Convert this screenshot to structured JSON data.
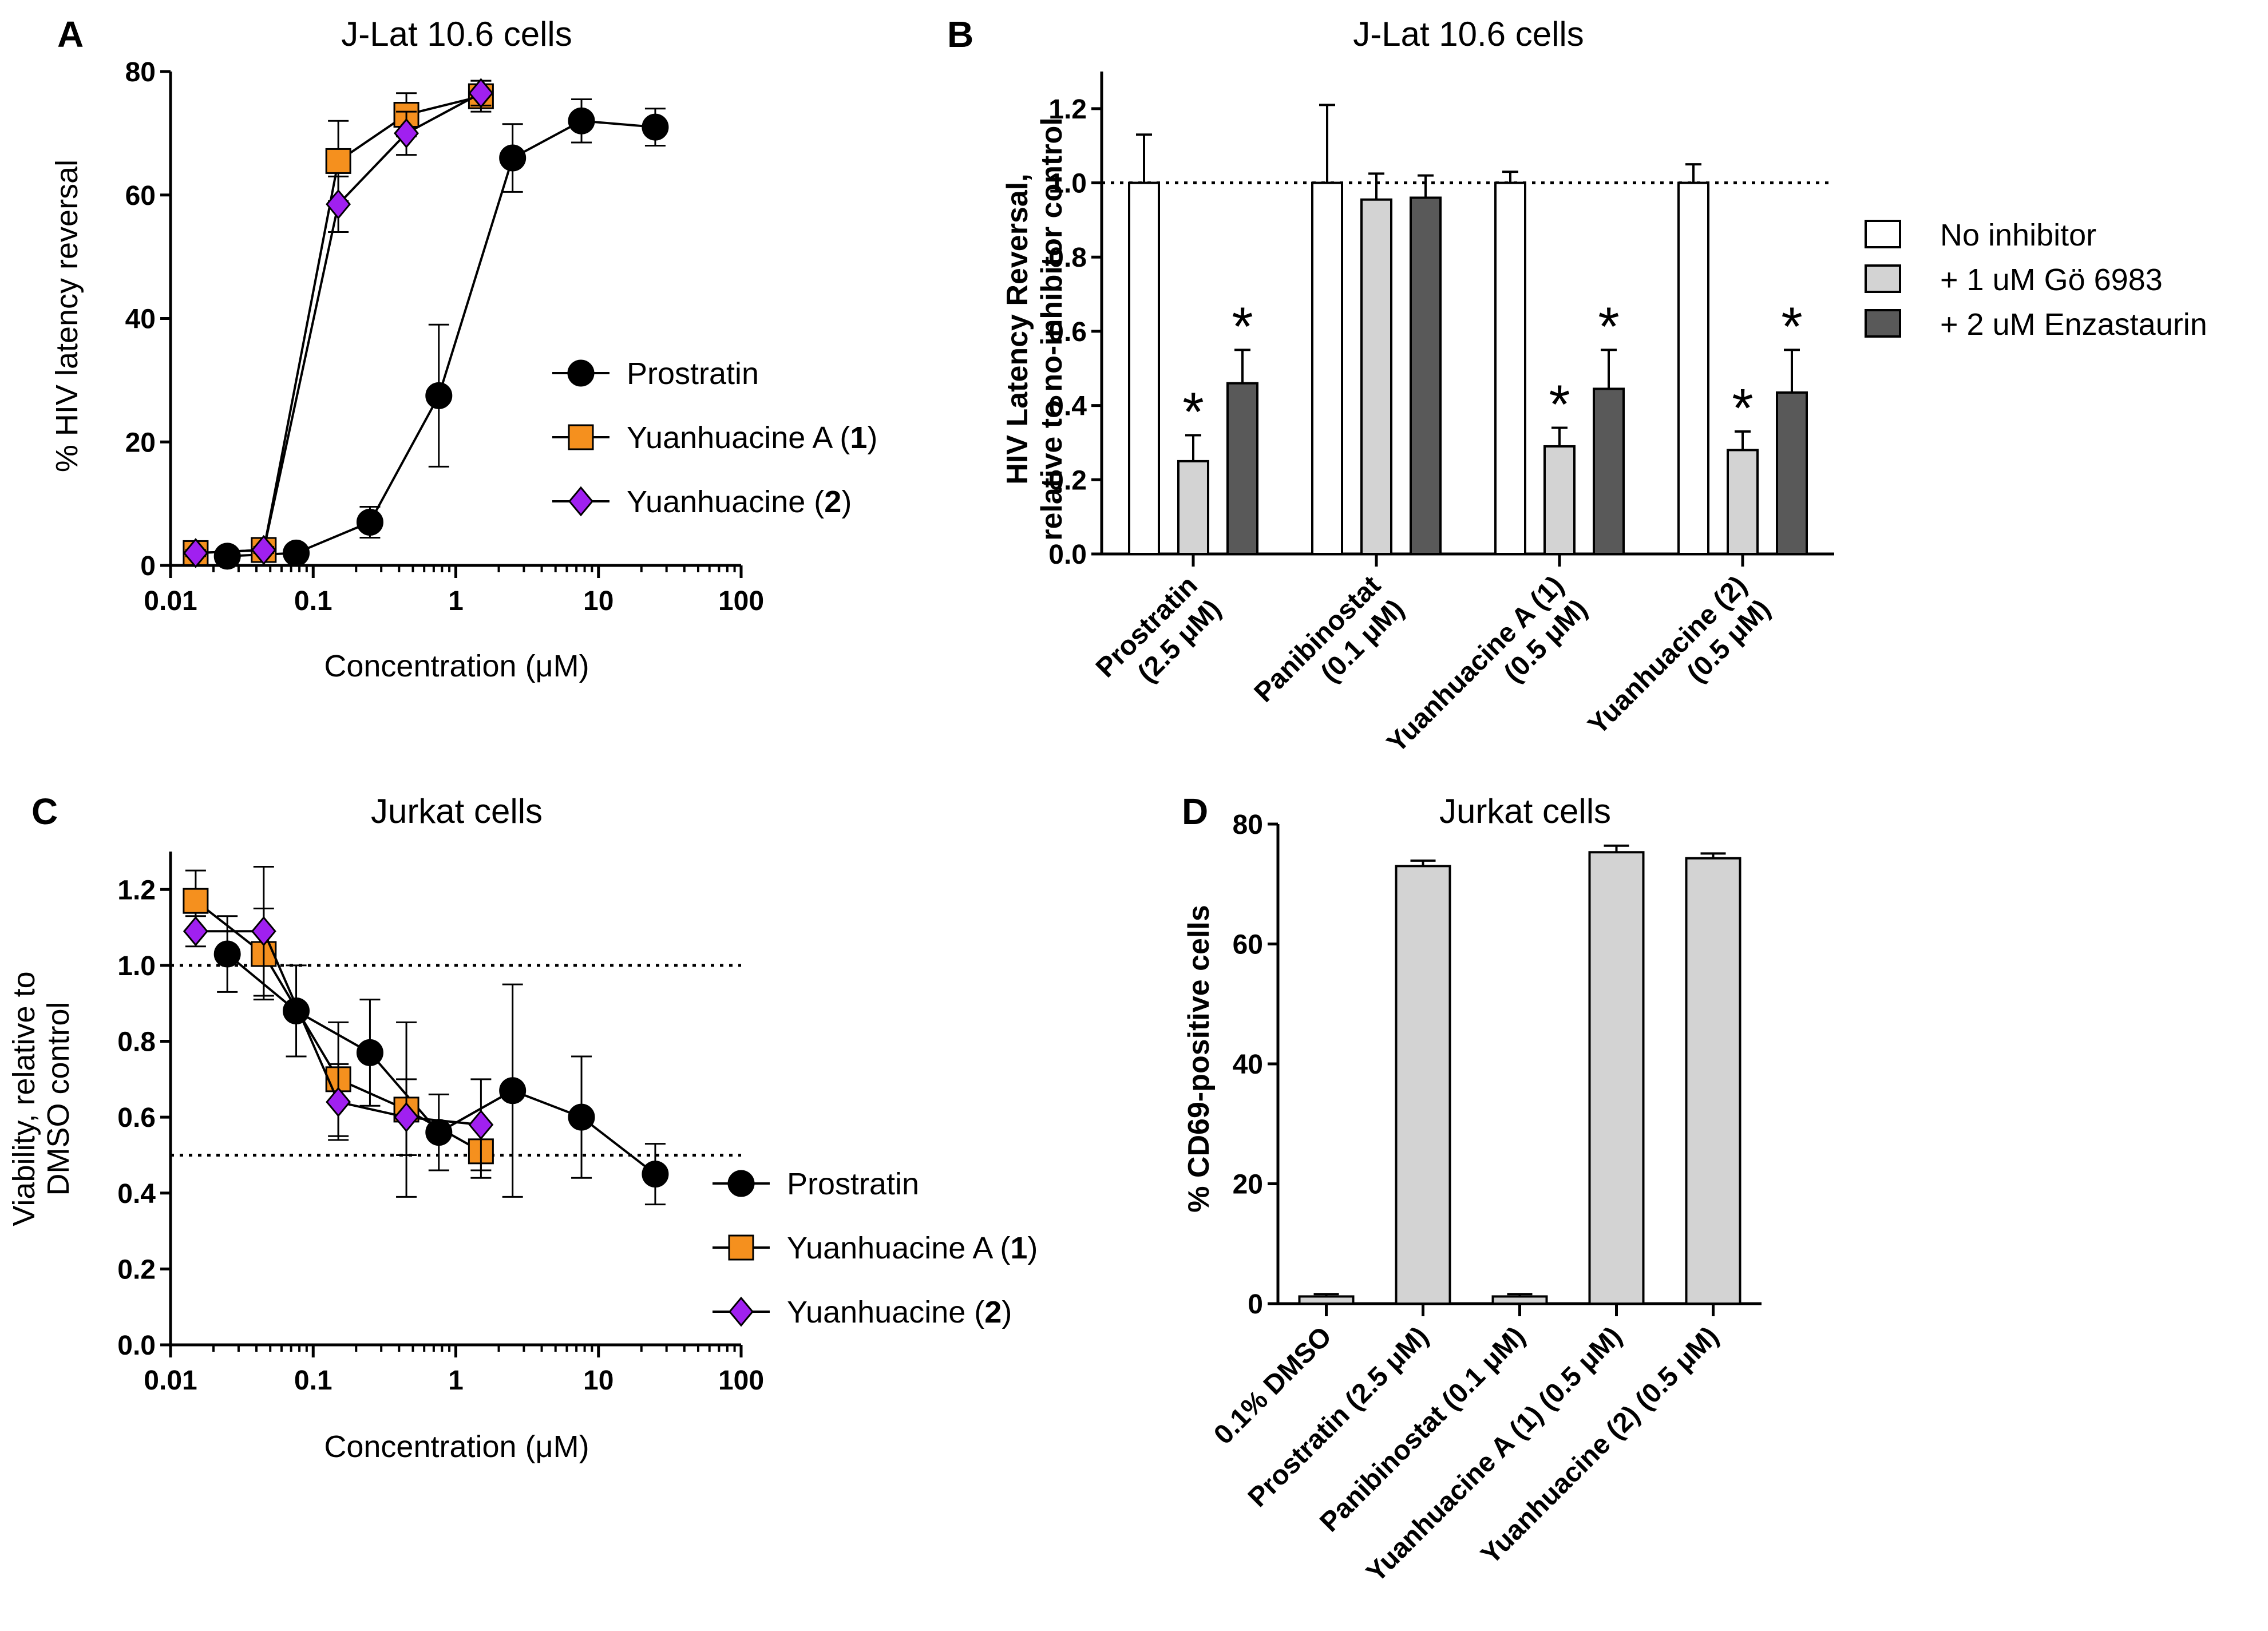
{
  "chart_data": [
    {
      "panel": "A",
      "type": "line",
      "title": "J-Lat 10.6 cells",
      "xlabel": "Concentration (μM)",
      "ylabel": "% HIV latency reversal",
      "xscale": "log",
      "xlim": [
        0.01,
        100
      ],
      "ylim": [
        0,
        80
      ],
      "yticks": [
        0,
        20,
        40,
        60,
        80
      ],
      "xticks": [
        0.01,
        0.1,
        1,
        10,
        100
      ],
      "xtick_labels": [
        "0.01",
        "0.1",
        "1",
        "10",
        "100"
      ],
      "legend_position": "right",
      "series": [
        {
          "name": "Prostratin",
          "label_main": "Prostratin",
          "label_num": "",
          "marker": "circle",
          "color": "#000000",
          "x": [
            0.025,
            0.076,
            0.25,
            0.76,
            2.5,
            7.6,
            25
          ],
          "y": [
            1.5,
            2,
            7,
            27.5,
            66,
            72,
            71
          ],
          "err": [
            0.5,
            0.5,
            2.5,
            11.5,
            5.5,
            3.5,
            3
          ]
        },
        {
          "name": "Yuanhuacine A (1)",
          "label_main": "Yuanhuacine A (",
          "label_num": "1",
          "marker": "square",
          "color": "#F5901E",
          "x": [
            0.015,
            0.045,
            0.15,
            0.45,
            1.5
          ],
          "y": [
            2,
            2.5,
            65.5,
            73,
            76
          ],
          "err": [
            0.5,
            0.5,
            6.5,
            3.5,
            2.5
          ]
        },
        {
          "name": "Yuanhuacine (2)",
          "label_main": "Yuanhuacine (",
          "label_num": "2",
          "marker": "diamond",
          "color": "#A020F0",
          "x": [
            0.015,
            0.045,
            0.15,
            0.45,
            1.5
          ],
          "y": [
            2,
            2.5,
            58.5,
            70,
            76.5
          ],
          "err": [
            0.5,
            0.5,
            4.5,
            3.5,
            2
          ]
        }
      ]
    },
    {
      "panel": "B",
      "type": "bar",
      "title": "J-Lat 10.6 cells",
      "ylabel": "HIV Latency Reversal,",
      "ylabel_line2": "relative to no-inhibitor control",
      "ylim": [
        0,
        1.3
      ],
      "yticks": [
        0.0,
        0.2,
        0.4,
        0.6,
        0.8,
        1.0,
        1.2
      ],
      "ytick_labels": [
        "0.0",
        "0.2",
        "0.4",
        "0.6",
        "0.8",
        "1.0",
        "1.2"
      ],
      "reference_line": 1.0,
      "categories": [
        "Prostratin (2.5 μM)",
        "Panibinostat (0.1 μM)",
        "Yuanhuacine A (1) (0.5 μM)",
        "Yuanhuacine (2) (0.5 μM)"
      ],
      "category_lines": [
        [
          "Prostratin",
          "(2.5 μM)"
        ],
        [
          "Panibinostat",
          "(0.1 μM)"
        ],
        [
          "Yuanhuacine A (1)",
          "(0.5 μM)"
        ],
        [
          "Yuanhuacine (2)",
          "(0.5 μM)"
        ]
      ],
      "legend_position": "right",
      "series": [
        {
          "name": "No inhibitor",
          "color": "#FFFFFF",
          "values": [
            1.0,
            1.0,
            1.0,
            1.0
          ],
          "err": [
            0.13,
            0.21,
            0.03,
            0.05
          ],
          "significant": [
            false,
            false,
            false,
            false
          ]
        },
        {
          "name": "+ 1 uM Gö 6983",
          "color": "#D3D3D3",
          "values": [
            0.25,
            0.955,
            0.29,
            0.28
          ],
          "err": [
            0.07,
            0.07,
            0.05,
            0.05
          ],
          "significant": [
            true,
            false,
            true,
            true
          ]
        },
        {
          "name": "+ 2 uM Enzastaurin",
          "color": "#595959",
          "values": [
            0.46,
            0.96,
            0.445,
            0.435
          ],
          "err": [
            0.09,
            0.06,
            0.105,
            0.115
          ],
          "significant": [
            true,
            false,
            true,
            true
          ]
        }
      ],
      "significance_marker": "*"
    },
    {
      "panel": "C",
      "type": "line",
      "title": "Jurkat cells",
      "xlabel": "Concentration (μM)",
      "ylabel": "Viability, relative to",
      "ylabel_line2": "DMSO control",
      "xscale": "log",
      "xlim": [
        0.01,
        100
      ],
      "ylim": [
        0,
        1.3
      ],
      "yticks": [
        0.0,
        0.2,
        0.4,
        0.6,
        0.8,
        1.0,
        1.2
      ],
      "ytick_labels": [
        "0.0",
        "0.2",
        "0.4",
        "0.6",
        "0.8",
        "1.0",
        "1.2"
      ],
      "xticks": [
        0.01,
        0.1,
        1,
        10,
        100
      ],
      "xtick_labels": [
        "0.01",
        "0.1",
        "1",
        "10",
        "100"
      ],
      "reference_lines": [
        1.0,
        0.5
      ],
      "legend_position": "bottom-right",
      "series": [
        {
          "name": "Prostratin",
          "label_main": "Prostratin",
          "label_num": "",
          "marker": "circle",
          "color": "#000000",
          "x": [
            0.025,
            0.076,
            0.25,
            0.76,
            2.5,
            7.6,
            25
          ],
          "y": [
            1.03,
            0.88,
            0.77,
            0.56,
            0.67,
            0.6,
            0.45
          ],
          "err": [
            0.1,
            0.12,
            0.14,
            0.1,
            0.28,
            0.16,
            0.08
          ]
        },
        {
          "name": "Yuanhuacine A (1)",
          "label_main": "Yuanhuacine A (",
          "label_num": "1",
          "marker": "square",
          "color": "#F5901E",
          "x": [
            0.015,
            0.045,
            0.15,
            0.45,
            1.5
          ],
          "y": [
            1.17,
            1.03,
            0.7,
            0.62,
            0.51
          ],
          "err": [
            0.08,
            0.12,
            0.15,
            0.23,
            0.07
          ]
        },
        {
          "name": "Yuanhuacine (2)",
          "label_main": "Yuanhuacine (",
          "label_num": "2",
          "marker": "diamond",
          "color": "#A020F0",
          "x": [
            0.015,
            0.045,
            0.15,
            0.45,
            1.5
          ],
          "y": [
            1.09,
            1.09,
            0.64,
            0.6,
            0.58
          ],
          "err": [
            0.04,
            0.17,
            0.1,
            0.1,
            0.12
          ]
        }
      ]
    },
    {
      "panel": "D",
      "type": "bar",
      "title": "Jurkat cells",
      "ylabel": "% CD69-positive cells",
      "ylim": [
        0,
        80
      ],
      "yticks": [
        0,
        20,
        40,
        60,
        80
      ],
      "ytick_labels": [
        "0",
        "20",
        "40",
        "60",
        "80"
      ],
      "categories": [
        "0.1% DMSO",
        "Prostratin (2.5 μM)",
        "Panibinostat (0.1 μM)",
        "Yuanhuacine A (1) (0.5 μM)",
        "Yuanhuacine (2) (0.5 μM)"
      ],
      "values": [
        1.2,
        73,
        1.2,
        75.3,
        74.3
      ],
      "err": [
        0.4,
        0.9,
        0.4,
        1.1,
        0.8
      ],
      "bar_colors": [
        "#D3D3D3",
        "#D3D3D3",
        "#D3D3D3",
        "#D3D3D3",
        "#D3D3D3"
      ]
    }
  ]
}
